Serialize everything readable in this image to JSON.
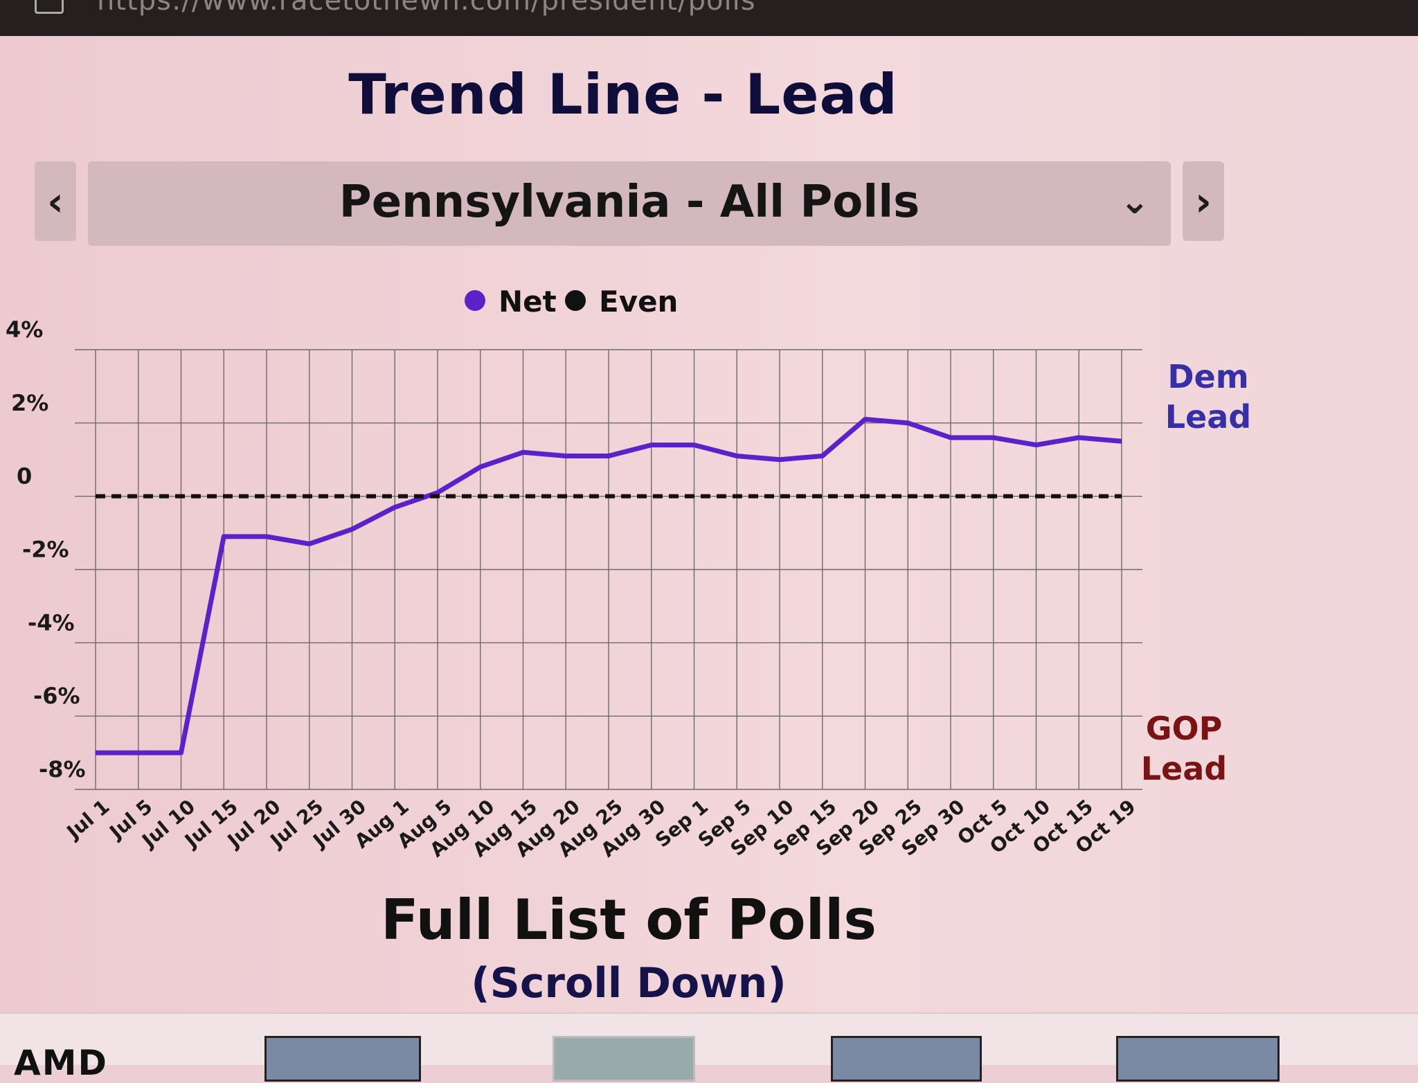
{
  "browser": {
    "url": "https://www.racetothewh.com/president/polls"
  },
  "page": {
    "title": "Trend Line - Lead",
    "selector_value": "Pennsylvania - All Polls",
    "prev_label": "‹",
    "next_label": "›",
    "chevron": "⌄",
    "footer_title": "Full List of Polls",
    "footer_subtitle": "(Scroll Down)"
  },
  "taskbar": {
    "brand": "AMD"
  },
  "chart_data": {
    "type": "line",
    "legend": [
      {
        "name": "Net",
        "color": "#5a22c8"
      },
      {
        "name": "Even",
        "color": "#111111"
      }
    ],
    "legend_position": "top-center",
    "categories": [
      "Jul 1",
      "Jul 5",
      "Jul 10",
      "Jul 15",
      "Jul 20",
      "Jul 25",
      "Jul 30",
      "Aug 1",
      "Aug 5",
      "Aug 10",
      "Aug 15",
      "Aug 20",
      "Aug 25",
      "Aug 30",
      "Sep 1",
      "Sep 5",
      "Sep 10",
      "Sep 15",
      "Sep 20",
      "Sep 25",
      "Sep 30",
      "Oct 5",
      "Oct 10",
      "Oct 15",
      "Oct 19"
    ],
    "series": [
      {
        "name": "Net",
        "color": "#5a22c8",
        "values": [
          -7.0,
          -7.0,
          -7.0,
          -1.1,
          -1.1,
          -1.3,
          -0.9,
          -0.3,
          0.1,
          0.8,
          1.2,
          1.1,
          1.1,
          1.4,
          1.4,
          1.1,
          1.0,
          1.1,
          2.1,
          2.0,
          1.6,
          1.6,
          1.4,
          1.6,
          1.5
        ]
      },
      {
        "name": "Even",
        "color": "#111111",
        "values": [
          0,
          0,
          0,
          0,
          0,
          0,
          0,
          0,
          0,
          0,
          0,
          0,
          0,
          0,
          0,
          0,
          0,
          0,
          0,
          0,
          0,
          0,
          0,
          0,
          0
        ]
      }
    ],
    "y_ticks": [
      "4%",
      "2%",
      "0",
      "-2%",
      "-4%",
      "-6%",
      "-8%"
    ],
    "ylim": [
      -8,
      4
    ],
    "grid": true,
    "annotations": {
      "top": [
        "Dem",
        "Lead"
      ],
      "bottom": [
        "GOP",
        "Lead"
      ],
      "top_color": "#3530a8",
      "bottom_color": "#7a1414"
    }
  }
}
